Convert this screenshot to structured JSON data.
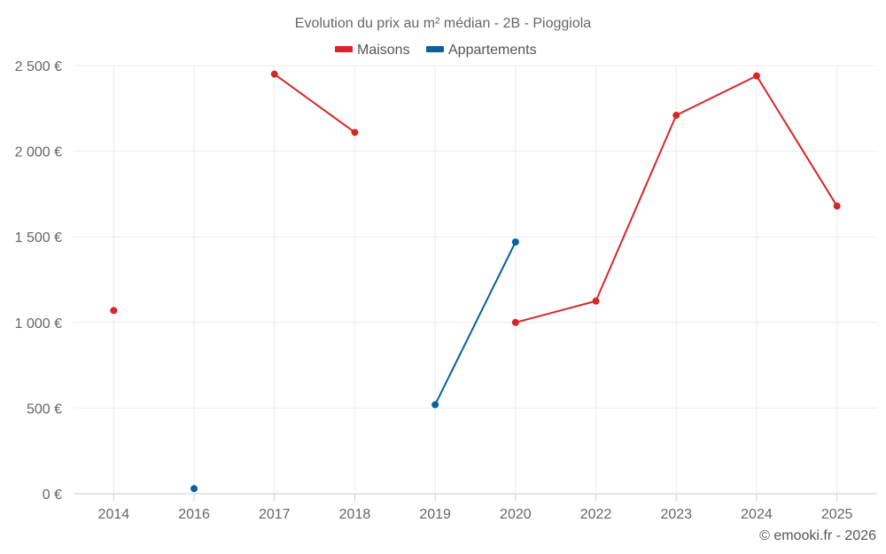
{
  "chart_data": {
    "type": "line",
    "title": "Evolution du prix au m² médian - 2B - Pioggiola",
    "categories": [
      "2014",
      "2016",
      "2017",
      "2018",
      "2019",
      "2020",
      "2022",
      "2023",
      "2024",
      "2025"
    ],
    "ylim": [
      0,
      2500
    ],
    "yticks": [
      0,
      500,
      1000,
      1500,
      2000,
      2500
    ],
    "ytick_labels": [
      "0 €",
      "500 €",
      "1 000 €",
      "1 500 €",
      "2 000 €",
      "2 500 €"
    ],
    "grid": true,
    "legend_position": "top-center",
    "series": [
      {
        "name": "Maisons",
        "color": "#d62728",
        "values": [
          1070,
          null,
          2450,
          2110,
          null,
          1000,
          1125,
          2210,
          2440,
          1680
        ]
      },
      {
        "name": "Appartements",
        "color": "#08619b",
        "values": [
          null,
          30,
          null,
          null,
          520,
          1470,
          null,
          null,
          null,
          null
        ]
      }
    ]
  },
  "credit": "© emooki.fr - 2026"
}
